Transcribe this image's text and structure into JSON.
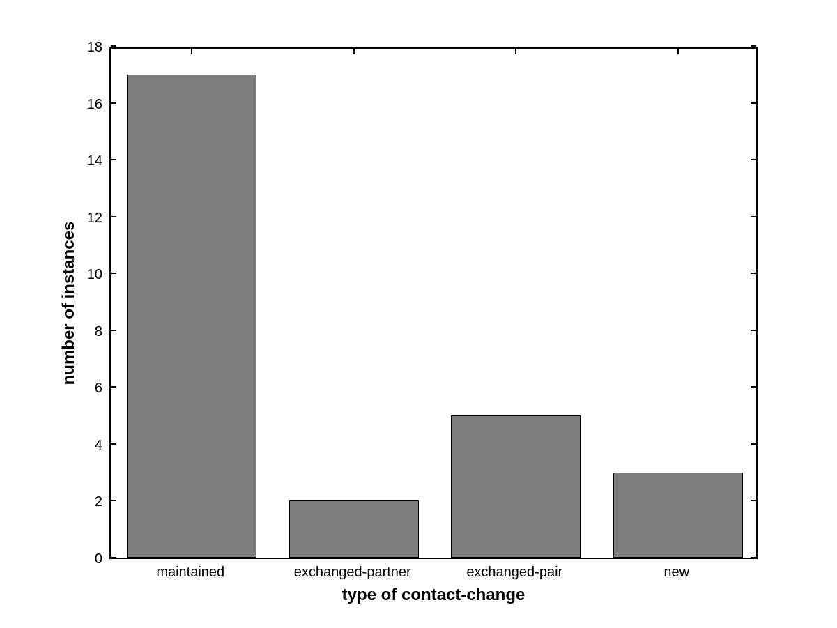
{
  "figure": {
    "background_color": "#ffffff"
  },
  "chart_data": {
    "type": "bar",
    "title": "",
    "xlabel": "type of contact-change",
    "ylabel": "number of instances",
    "categories": [
      "maintained",
      "exchanged-partner",
      "exchanged-pair",
      "new"
    ],
    "values": [
      17,
      2,
      5,
      3
    ],
    "ylim": [
      0,
      18
    ],
    "ytick_interval": 2,
    "ytick_labels": [
      "0",
      "2",
      "4",
      "6",
      "8",
      "10",
      "12",
      "14",
      "16",
      "18"
    ],
    "bar_width_fraction": 0.8,
    "bar_color": "#7d7d7d",
    "bar_edge_color": "#000000",
    "axis_color": "#000000",
    "grid": false,
    "legend": "none",
    "tick_direction": "in",
    "box": true
  }
}
